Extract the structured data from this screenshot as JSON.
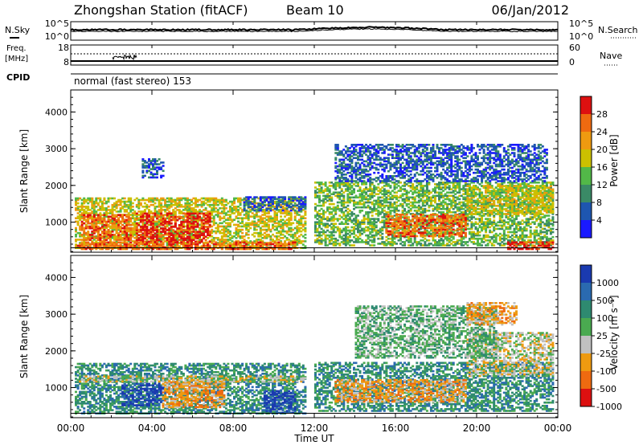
{
  "header": {
    "title": "Zhongshan Station (fitACF)",
    "beam": "Beam 10",
    "date": "06/Jan/2012"
  },
  "top_panels": {
    "nsky_label": "N.Sky",
    "nsearch_label": "N.Search",
    "noise_ticks_left": [
      "10^5",
      "10^0"
    ],
    "noise_ticks_right": [
      "10^5",
      "10^0"
    ],
    "freq_label_1": "Freq.",
    "freq_label_2": "[MHz]",
    "freq_ticks": [
      "18",
      "8"
    ],
    "nave_ticks": [
      "60",
      "0"
    ],
    "nave_label": "Nave",
    "cpid_label": "CPID",
    "cpid_text": "normal (fast stereo) 153"
  },
  "x_axis": {
    "label": "Time UT",
    "ticks": [
      "00:00",
      "04:00",
      "08:00",
      "12:00",
      "16:00",
      "20:00",
      "00:00"
    ]
  },
  "chart_data": [
    {
      "type": "heatmap",
      "name": "power",
      "ylabel": "Slant Range [km]",
      "yticks": [
        1000,
        2000,
        3000,
        4000
      ],
      "ylim": [
        180,
        4600
      ],
      "xlim": [
        0,
        24
      ],
      "colorbar_label": "Power [dB]",
      "colorbar_ticks": [
        "4",
        "8",
        "12",
        "16",
        "20",
        "24",
        "28"
      ],
      "colorbar_colors": [
        "#1a1aff",
        "#1e56b0",
        "#3a8a66",
        "#52b848",
        "#ccc000",
        "#ee9a10",
        "#ee6a10",
        "#dd1010"
      ],
      "blobs": [
        {
          "t0": 0.2,
          "t1": 11.5,
          "r0": 280,
          "r1": 1650,
          "class": 4
        },
        {
          "t0": 0.5,
          "t1": 3.0,
          "r0": 500,
          "r1": 1200,
          "class": 6
        },
        {
          "t0": 3.2,
          "t1": 6.8,
          "r0": 450,
          "r1": 1250,
          "class": 7
        },
        {
          "t0": 0.3,
          "t1": 11.0,
          "r0": 250,
          "r1": 450,
          "class": 6
        },
        {
          "t0": 3.5,
          "t1": 4.5,
          "r0": 2200,
          "r1": 2700,
          "class": 1
        },
        {
          "t0": 8.5,
          "t1": 11.5,
          "r0": 1300,
          "r1": 1700,
          "class": 1
        },
        {
          "t0": 12.0,
          "t1": 23.8,
          "r0": 350,
          "r1": 2100,
          "class": 3
        },
        {
          "t0": 15.5,
          "t1": 19.5,
          "r0": 600,
          "r1": 1200,
          "class": 6
        },
        {
          "t0": 19.5,
          "t1": 23.8,
          "r0": 1200,
          "r1": 2000,
          "class": 4
        },
        {
          "t0": 13.0,
          "t1": 23.5,
          "r0": 2100,
          "r1": 3100,
          "class": 1
        },
        {
          "t0": 21.5,
          "t1": 23.8,
          "r0": 250,
          "r1": 450,
          "class": 7
        }
      ]
    },
    {
      "type": "heatmap",
      "name": "velocity",
      "ylabel": "Slant Range [km]",
      "yticks": [
        1000,
        2000,
        3000,
        4000
      ],
      "ylim": [
        180,
        4600
      ],
      "xlim": [
        0,
        24
      ],
      "colorbar_label": "Velocity [m s⁻¹]",
      "colorbar_ticks": [
        "1000",
        "500",
        "100",
        "25",
        "-25",
        "-100",
        "-500",
        "-1000"
      ],
      "colorbar_colors": [
        "#1a3ab0",
        "#2a6ab0",
        "#2e8a70",
        "#4aaa50",
        "#c0c0c0",
        "#ee9a10",
        "#ee6a10",
        "#dd1010"
      ],
      "blobs": [
        {
          "t0": 0.2,
          "t1": 11.5,
          "r0": 280,
          "r1": 1650,
          "class": 2
        },
        {
          "t0": 2.5,
          "t1": 4.5,
          "r0": 500,
          "r1": 1100,
          "class": 0
        },
        {
          "t0": 4.5,
          "t1": 7.5,
          "r0": 450,
          "r1": 1200,
          "class": 5
        },
        {
          "t0": 9.5,
          "t1": 11.0,
          "r0": 300,
          "r1": 900,
          "class": 0
        },
        {
          "t0": 0.3,
          "t1": 11.5,
          "r0": 1150,
          "r1": 1300,
          "class": 4
        },
        {
          "t0": 12.0,
          "t1": 23.8,
          "r0": 350,
          "r1": 1700,
          "class": 2
        },
        {
          "t0": 13.0,
          "t1": 19.5,
          "r0": 600,
          "r1": 1200,
          "class": 5
        },
        {
          "t0": 19.5,
          "t1": 23.8,
          "r0": 1300,
          "r1": 2500,
          "class": 4
        },
        {
          "t0": 14.0,
          "t1": 21.0,
          "r0": 1800,
          "r1": 3200,
          "class": 3
        },
        {
          "t0": 19.5,
          "t1": 22.0,
          "r0": 2700,
          "r1": 3300,
          "class": 5
        }
      ]
    }
  ]
}
